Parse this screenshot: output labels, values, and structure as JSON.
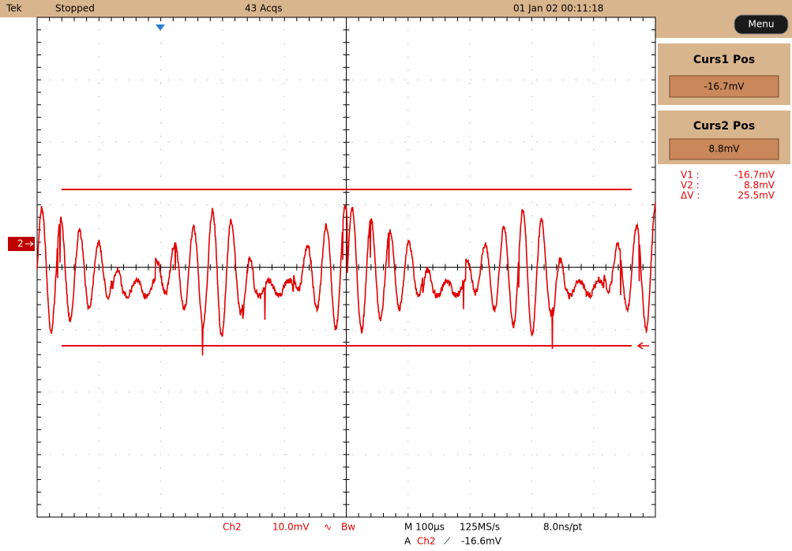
{
  "header": {
    "brand": "Tek",
    "status": "Stopped",
    "acqs": "43 Acqs",
    "datetime": "01 Jan 02 00:11:18"
  },
  "menu": "Menu",
  "cursors": [
    {
      "title": "Curs1 Pos",
      "value": "-16.7mV"
    },
    {
      "title": "Curs2 Pos",
      "value": "8.8mV"
    }
  ],
  "readout": [
    [
      "V1 :",
      "-16.7mV"
    ],
    [
      "V2 :",
      "8.8mV"
    ],
    [
      "ΔV :",
      "25.5mV"
    ]
  ],
  "channel_marker": "2",
  "footer": {
    "channel": "Ch2",
    "scale": "10.0mV",
    "coupling": "∿",
    "bw": "Bw",
    "timebase": "M 100µs",
    "rate": "125MS/s",
    "resolution": "8.0ns/pt",
    "trigger": "A",
    "trigger_source": "Ch2",
    "trigger_slope": "⟋",
    "trigger_level": "-16.6mV"
  }
}
